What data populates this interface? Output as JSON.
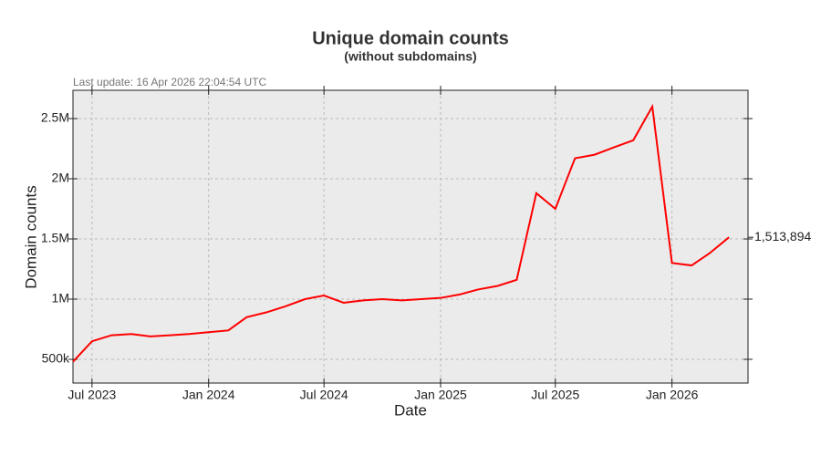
{
  "chart_data": {
    "type": "line",
    "title": "Unique domain counts",
    "subtitle": "(without subdomains)",
    "annotation": "Last update: 16 Apr 2026 22:04:54 UTC",
    "xlabel": "Date",
    "ylabel": "Domain counts",
    "x": [
      "2023-06",
      "2023-07",
      "2023-08",
      "2023-09",
      "2023-10",
      "2023-11",
      "2023-12",
      "2024-01",
      "2024-02",
      "2024-03",
      "2024-04",
      "2024-05",
      "2024-06",
      "2024-07",
      "2024-08",
      "2024-09",
      "2024-10",
      "2024-11",
      "2024-12",
      "2025-01",
      "2025-02",
      "2025-03",
      "2025-04",
      "2025-05",
      "2025-06",
      "2025-07",
      "2025-08",
      "2025-09",
      "2025-10",
      "2025-11",
      "2025-12",
      "2026-01",
      "2026-02",
      "2026-03",
      "2026-04"
    ],
    "series": [
      {
        "name": "Domain counts",
        "color": "#ff0000",
        "values": [
          480000,
          650000,
          700000,
          710000,
          690000,
          700000,
          710000,
          725000,
          740000,
          850000,
          890000,
          940000,
          1000000,
          1030000,
          970000,
          990000,
          1000000,
          990000,
          1000000,
          1010000,
          1040000,
          1080000,
          1110000,
          1160000,
          1880000,
          1750000,
          2170000,
          2200000,
          2260000,
          2320000,
          2600000,
          1300000,
          1280000,
          1380000,
          1513894
        ],
        "value_labels": [
          null,
          null,
          null,
          null,
          null,
          null,
          null,
          null,
          null,
          null,
          null,
          null,
          null,
          null,
          null,
          null,
          null,
          null,
          null,
          null,
          null,
          null,
          null,
          null,
          null,
          null,
          null,
          null,
          null,
          null,
          null,
          null,
          null,
          null,
          "1,513,894"
        ]
      }
    ],
    "xlim": [
      "2023-06",
      "2026-05"
    ],
    "xticks": [
      {
        "value": "2023-07",
        "label": "Jul 2023"
      },
      {
        "value": "2024-01",
        "label": "Jan 2024"
      },
      {
        "value": "2024-07",
        "label": "Jul 2024"
      },
      {
        "value": "2025-01",
        "label": "Jan 2025"
      },
      {
        "value": "2025-07",
        "label": "Jul 2025"
      },
      {
        "value": "2026-01",
        "label": "Jan 2026"
      }
    ],
    "ylim": [
      303000,
      2735000
    ],
    "yticks": [
      {
        "value": 500000,
        "label": "500k"
      },
      {
        "value": 1000000,
        "label": "1M"
      },
      {
        "value": 1500000,
        "label": "1.5M"
      },
      {
        "value": 2000000,
        "label": "2M"
      },
      {
        "value": 2500000,
        "label": "2.5M"
      }
    ],
    "grid": true
  }
}
